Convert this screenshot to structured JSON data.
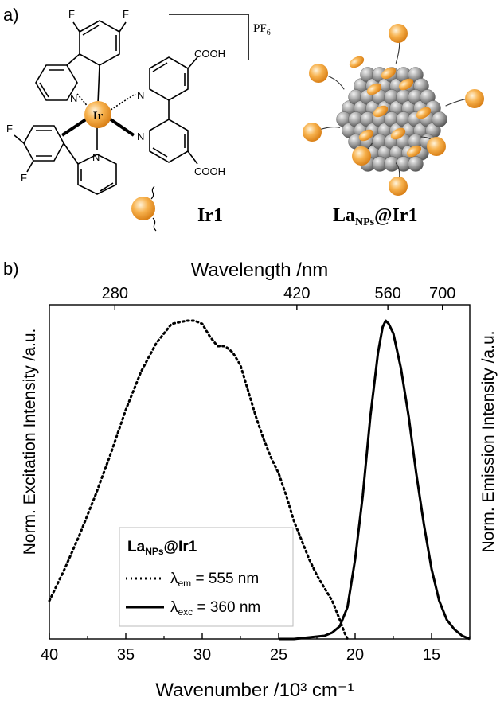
{
  "panel_a": {
    "label": "a)",
    "metal_label": "Ir",
    "cooh_top": "COOH",
    "cooh_bottom": "COOH",
    "fluorine": "F",
    "nitrogen": "N",
    "counterion_pf": "PF",
    "counterion_sub": "6",
    "compound_label": "Ir1",
    "nanoparticle_label_main": "La",
    "nanoparticle_label_sub": "NPs",
    "nanoparticle_label_tail": "@Ir1",
    "colors": {
      "orange": "#f5a030",
      "orange_light": "#fde2b0",
      "grey": "#8c8c8c",
      "grey_light": "#d8d8d8"
    }
  },
  "panel_b": {
    "label": "b)"
  },
  "chart_data": {
    "type": "line",
    "xlabel_bottom": "Wavenumber /10³ cm⁻¹",
    "xlabel_top": "Wavelength /nm",
    "ylabel_left": "Norm. Excitation Intensity /a.u.",
    "ylabel_right": "Norm. Emission Intensity /a.u.",
    "xlim": [
      40,
      12.5
    ],
    "ylim": [
      0,
      1.05
    ],
    "x_ticks_bottom": [
      {
        "v": 40,
        "label": "40"
      },
      {
        "v": 35,
        "label": "35"
      },
      {
        "v": 30,
        "label": "30"
      },
      {
        "v": 25,
        "label": "25"
      },
      {
        "v": 20,
        "label": "20"
      },
      {
        "v": 15,
        "label": "15"
      }
    ],
    "x_ticks_top": [
      {
        "nm": 280,
        "label": "280"
      },
      {
        "nm": 420,
        "label": "420"
      },
      {
        "nm": 560,
        "label": "560"
      },
      {
        "nm": 700,
        "label": "700"
      }
    ],
    "legend": {
      "title_main": "La",
      "title_sub": "NPs",
      "title_tail": "@Ir1",
      "entries": [
        {
          "symbol": "λ",
          "sub": "em",
          "text": " = 555 nm",
          "style": "dotted"
        },
        {
          "symbol": "λ",
          "sub": "exc",
          "text": " = 360 nm",
          "style": "solid"
        }
      ]
    },
    "series": [
      {
        "style": "dotted",
        "x": [
          40.0,
          39.0,
          38.0,
          37.0,
          36.0,
          35.0,
          34.0,
          33.0,
          32.0,
          31.0,
          30.5,
          30.0,
          29.5,
          29.0,
          28.5,
          28.0,
          27.5,
          27.0,
          26.5,
          26.0,
          25.5,
          25.0,
          24.5,
          24.0,
          23.5,
          23.0,
          22.5,
          22.0,
          21.5,
          21.0,
          20.7,
          20.5
        ],
        "y": [
          0.12,
          0.22,
          0.33,
          0.45,
          0.58,
          0.72,
          0.84,
          0.93,
          0.99,
          1.0,
          1.0,
          0.99,
          0.95,
          0.92,
          0.92,
          0.9,
          0.86,
          0.78,
          0.7,
          0.63,
          0.57,
          0.52,
          0.45,
          0.37,
          0.31,
          0.25,
          0.2,
          0.16,
          0.12,
          0.06,
          0.02,
          0.0
        ]
      },
      {
        "style": "solid",
        "x": [
          25.0,
          24.0,
          23.0,
          22.0,
          21.5,
          21.0,
          20.5,
          20.0,
          19.5,
          19.0,
          18.5,
          18.2,
          18.0,
          17.8,
          17.5,
          17.0,
          16.5,
          16.0,
          15.5,
          15.0,
          14.5,
          14.0,
          13.5,
          13.0,
          12.5
        ],
        "y": [
          0.0,
          0.0,
          0.005,
          0.01,
          0.02,
          0.04,
          0.1,
          0.25,
          0.45,
          0.7,
          0.9,
          0.98,
          1.0,
          0.99,
          0.96,
          0.85,
          0.7,
          0.52,
          0.36,
          0.22,
          0.12,
          0.06,
          0.03,
          0.01,
          0.0
        ]
      }
    ]
  }
}
